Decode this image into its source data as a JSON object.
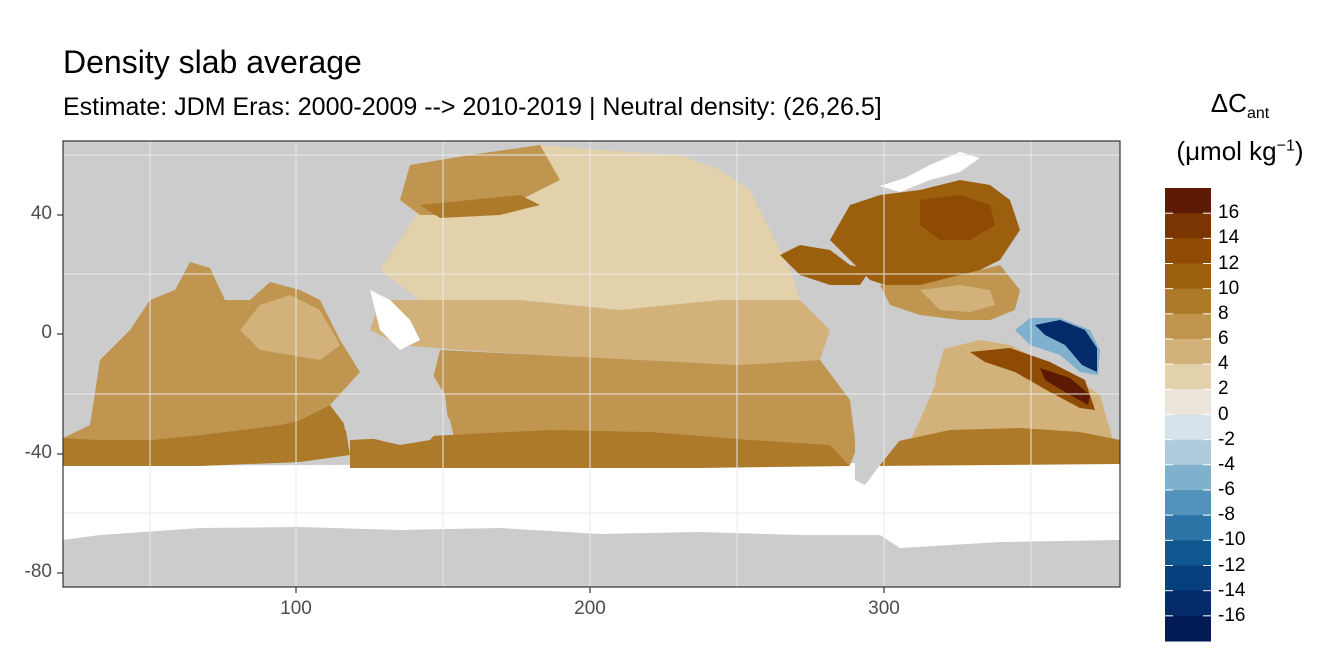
{
  "title": "Density slab average",
  "subtitle": "Estimate: JDM Eras: 2000-2009 --> 2010-2019 | Neutral density: (26,26.5]",
  "axes": {
    "x_ticks": [
      "100",
      "200",
      "300"
    ],
    "y_ticks": [
      "40",
      "0",
      "-40",
      "-80"
    ]
  },
  "legend": {
    "title_symbol": "ΔC",
    "title_subscript": "ant",
    "units_open": "(μmol kg",
    "units_superscript": "−1",
    "units_close": ")",
    "labels": [
      "16",
      "14",
      "12",
      "10",
      "8",
      "6",
      "4",
      "2",
      "0",
      "-2",
      "-4",
      "-6",
      "-8",
      "-10",
      "-12",
      "-14",
      "-16"
    ],
    "colors": [
      "#5c1a04",
      "#7a3503",
      "#8f4a04",
      "#9c5f0e",
      "#ad7a2a",
      "#bf9550",
      "#d2b27a",
      "#e3d1ab",
      "#ece5da",
      "#d6e3ea",
      "#aecadb",
      "#7fb0cd",
      "#5393bb",
      "#2d74a6",
      "#10568f",
      "#073f7c",
      "#032b69",
      "#021a55"
    ]
  },
  "map_colors": {
    "land": "#cccccc",
    "no_data": "#ffffff",
    "grid": "#ebebeb",
    "frame": "#333333"
  }
}
